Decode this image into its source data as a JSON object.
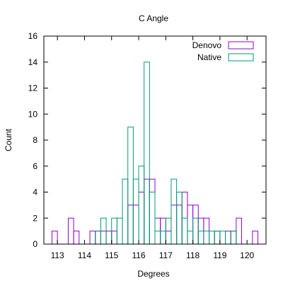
{
  "chart_data": {
    "type": "bar",
    "title": "C Angle",
    "xlabel": "Degrees",
    "ylabel": "Count",
    "xlim": [
      112.5,
      120.7
    ],
    "ylim": [
      0,
      16
    ],
    "bin_width": 0.2,
    "xticks": [
      113,
      114,
      115,
      116,
      117,
      118,
      119,
      120
    ],
    "yticks": [
      0,
      2,
      4,
      6,
      8,
      10,
      12,
      14,
      16
    ],
    "grid": false,
    "legend_position": "top-right",
    "series": [
      {
        "name": "Denovo",
        "color": "#9400d3",
        "bins": [
          [
            112.8,
            1
          ],
          [
            113.4,
            2
          ],
          [
            113.6,
            1
          ],
          [
            114.2,
            1
          ],
          [
            114.4,
            1
          ],
          [
            114.6,
            1
          ],
          [
            114.8,
            1
          ],
          [
            115.0,
            1
          ],
          [
            115.6,
            3
          ],
          [
            115.8,
            3
          ],
          [
            116.0,
            4
          ],
          [
            116.2,
            5
          ],
          [
            116.4,
            5
          ],
          [
            116.6,
            2
          ],
          [
            116.8,
            2
          ],
          [
            117.0,
            1
          ],
          [
            117.2,
            3
          ],
          [
            117.4,
            3
          ],
          [
            117.6,
            4
          ],
          [
            117.8,
            3
          ],
          [
            118.0,
            3
          ],
          [
            118.2,
            2
          ],
          [
            118.4,
            2
          ],
          [
            118.8,
            1
          ],
          [
            119.2,
            1
          ],
          [
            119.4,
            1
          ],
          [
            119.6,
            2
          ],
          [
            120.2,
            1
          ]
        ]
      },
      {
        "name": "Native",
        "color": "#009e73",
        "bins": [
          [
            114.4,
            1
          ],
          [
            114.6,
            2
          ],
          [
            115.0,
            2
          ],
          [
            115.2,
            2
          ],
          [
            115.4,
            5
          ],
          [
            115.6,
            9
          ],
          [
            115.8,
            5
          ],
          [
            116.0,
            6
          ],
          [
            116.2,
            14
          ],
          [
            116.4,
            4
          ],
          [
            116.6,
            1
          ],
          [
            116.8,
            1
          ],
          [
            117.0,
            2
          ],
          [
            117.2,
            5
          ],
          [
            117.4,
            4
          ],
          [
            117.6,
            2
          ],
          [
            117.8,
            1
          ],
          [
            118.0,
            2
          ],
          [
            118.2,
            1
          ],
          [
            118.4,
            1
          ],
          [
            118.6,
            1
          ],
          [
            118.8,
            1
          ],
          [
            119.0,
            1
          ],
          [
            119.4,
            1
          ]
        ]
      }
    ]
  }
}
